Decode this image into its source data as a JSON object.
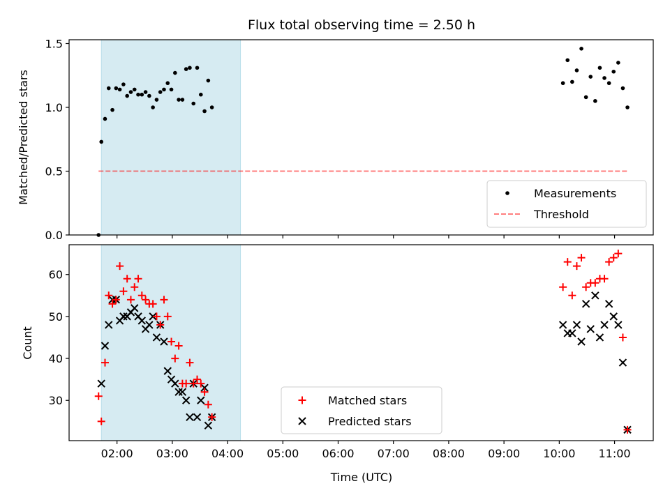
{
  "title": "Flux total observing time = 2.50 h",
  "chart_data": [
    {
      "type": "scatter",
      "panel": "top",
      "ylabel": "Matched/Predicted stars",
      "ylim": [
        0,
        1.53
      ],
      "yticks": [
        "0.0",
        "0.5",
        "1.0",
        "1.5"
      ],
      "threshold": 0.5,
      "highlight_span": [
        "01:43",
        "04:14"
      ],
      "legend": {
        "placement": "lower-right",
        "entries": [
          "Measurements",
          "Threshold"
        ]
      },
      "series": [
        {
          "name": "Measurements",
          "color": "#000000",
          "marker": "dot",
          "points": [
            [
              "01:40",
              0.0
            ],
            [
              "01:43",
              0.73
            ],
            [
              "01:47",
              0.91
            ],
            [
              "01:51",
              1.15
            ],
            [
              "01:55",
              0.98
            ],
            [
              "01:59",
              1.15
            ],
            [
              "02:03",
              1.14
            ],
            [
              "02:07",
              1.18
            ],
            [
              "02:11",
              1.09
            ],
            [
              "02:15",
              1.12
            ],
            [
              "02:19",
              1.14
            ],
            [
              "02:23",
              1.1
            ],
            [
              "02:27",
              1.1
            ],
            [
              "02:31",
              1.12
            ],
            [
              "02:35",
              1.09
            ],
            [
              "02:39",
              1.0
            ],
            [
              "02:43",
              1.06
            ],
            [
              "02:47",
              1.12
            ],
            [
              "02:51",
              1.14
            ],
            [
              "02:55",
              1.19
            ],
            [
              "02:59",
              1.14
            ],
            [
              "03:03",
              1.27
            ],
            [
              "03:07",
              1.06
            ],
            [
              "03:11",
              1.06
            ],
            [
              "03:15",
              1.3
            ],
            [
              "03:19",
              1.31
            ],
            [
              "03:23",
              1.03
            ],
            [
              "03:27",
              1.31
            ],
            [
              "03:31",
              1.1
            ],
            [
              "03:35",
              0.97
            ],
            [
              "03:39",
              1.21
            ],
            [
              "03:43",
              1.0
            ],
            [
              "10:04",
              1.19
            ],
            [
              "10:09",
              1.37
            ],
            [
              "10:14",
              1.2
            ],
            [
              "10:19",
              1.29
            ],
            [
              "10:24",
              1.46
            ],
            [
              "10:29",
              1.08
            ],
            [
              "10:34",
              1.24
            ],
            [
              "10:39",
              1.05
            ],
            [
              "10:44",
              1.31
            ],
            [
              "10:49",
              1.23
            ],
            [
              "10:54",
              1.19
            ],
            [
              "10:59",
              1.28
            ],
            [
              "11:04",
              1.35
            ],
            [
              "11:09",
              1.15
            ],
            [
              "11:14",
              1.0
            ]
          ]
        }
      ]
    },
    {
      "type": "scatter",
      "panel": "bottom",
      "xlabel": "Time (UTC)",
      "ylabel": "Count",
      "ylim": [
        20.4,
        67.1
      ],
      "yticks": [
        "30",
        "40",
        "50",
        "60"
      ],
      "xticks": [
        "02:00",
        "03:00",
        "04:00",
        "05:00",
        "06:00",
        "07:00",
        "08:00",
        "09:00",
        "10:00",
        "11:00"
      ],
      "xlim": [
        "01:08",
        "11:42"
      ],
      "highlight_span": [
        "01:43",
        "04:14"
      ],
      "legend": {
        "placement": "lower-center",
        "entries": [
          "Matched stars",
          "Predicted stars"
        ]
      },
      "series": [
        {
          "name": "Matched stars",
          "color": "#ff0000",
          "marker": "plus",
          "points": [
            [
              "01:40",
              31
            ],
            [
              "01:43",
              25
            ],
            [
              "01:47",
              39
            ],
            [
              "01:51",
              55
            ],
            [
              "01:55",
              53
            ],
            [
              "01:59",
              54
            ],
            [
              "02:03",
              62
            ],
            [
              "02:07",
              56
            ],
            [
              "02:11",
              59
            ],
            [
              "02:15",
              54
            ],
            [
              "02:19",
              57
            ],
            [
              "02:23",
              59
            ],
            [
              "02:27",
              55
            ],
            [
              "02:31",
              54
            ],
            [
              "02:35",
              53
            ],
            [
              "02:39",
              53
            ],
            [
              "02:43",
              50
            ],
            [
              "02:47",
              48
            ],
            [
              "02:51",
              54
            ],
            [
              "02:55",
              50
            ],
            [
              "02:59",
              44
            ],
            [
              "03:03",
              40
            ],
            [
              "03:07",
              43
            ],
            [
              "03:11",
              34
            ],
            [
              "03:15",
              34
            ],
            [
              "03:19",
              39
            ],
            [
              "03:23",
              34
            ],
            [
              "03:27",
              35
            ],
            [
              "03:31",
              34
            ],
            [
              "03:35",
              32
            ],
            [
              "03:39",
              29
            ],
            [
              "03:43",
              26
            ],
            [
              "10:04",
              57
            ],
            [
              "10:09",
              63
            ],
            [
              "10:14",
              55
            ],
            [
              "10:19",
              62
            ],
            [
              "10:24",
              64
            ],
            [
              "10:29",
              57
            ],
            [
              "10:34",
              58
            ],
            [
              "10:39",
              58
            ],
            [
              "10:44",
              59
            ],
            [
              "10:49",
              59
            ],
            [
              "10:54",
              63
            ],
            [
              "10:59",
              64
            ],
            [
              "11:04",
              65
            ],
            [
              "11:09",
              45
            ],
            [
              "11:14",
              23
            ]
          ]
        },
        {
          "name": "Predicted stars",
          "color": "#000000",
          "marker": "x",
          "points": [
            [
              "01:43",
              34
            ],
            [
              "01:47",
              43
            ],
            [
              "01:51",
              48
            ],
            [
              "01:55",
              54
            ],
            [
              "01:59",
              54
            ],
            [
              "02:03",
              49
            ],
            [
              "02:07",
              50
            ],
            [
              "02:11",
              50
            ],
            [
              "02:15",
              51
            ],
            [
              "02:19",
              52
            ],
            [
              "02:23",
              50
            ],
            [
              "02:27",
              49
            ],
            [
              "02:31",
              47
            ],
            [
              "02:35",
              48
            ],
            [
              "02:39",
              50
            ],
            [
              "02:43",
              45
            ],
            [
              "02:47",
              48
            ],
            [
              "02:51",
              44
            ],
            [
              "02:55",
              37
            ],
            [
              "02:59",
              35
            ],
            [
              "03:03",
              34
            ],
            [
              "03:07",
              32
            ],
            [
              "03:11",
              32
            ],
            [
              "03:15",
              30
            ],
            [
              "03:19",
              26
            ],
            [
              "03:23",
              34
            ],
            [
              "03:27",
              26
            ],
            [
              "03:31",
              30
            ],
            [
              "03:35",
              33
            ],
            [
              "03:39",
              24
            ],
            [
              "03:43",
              26
            ],
            [
              "10:04",
              48
            ],
            [
              "10:09",
              46
            ],
            [
              "10:14",
              46
            ],
            [
              "10:19",
              48
            ],
            [
              "10:24",
              44
            ],
            [
              "10:29",
              53
            ],
            [
              "10:34",
              47
            ],
            [
              "10:39",
              55
            ],
            [
              "10:44",
              45
            ],
            [
              "10:49",
              48
            ],
            [
              "10:54",
              53
            ],
            [
              "10:59",
              50
            ],
            [
              "11:04",
              48
            ],
            [
              "11:09",
              39
            ],
            [
              "11:14",
              23
            ]
          ]
        }
      ]
    }
  ]
}
